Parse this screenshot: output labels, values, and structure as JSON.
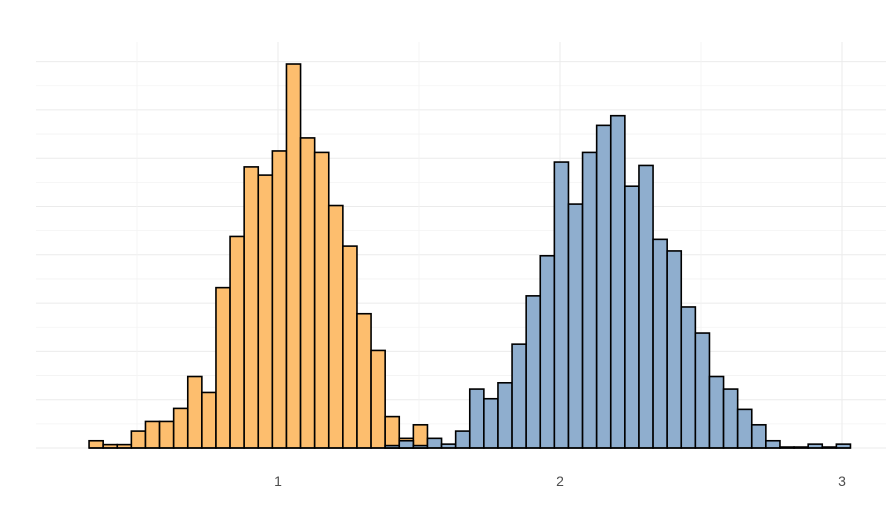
{
  "chart_data": {
    "type": "bar",
    "title": "",
    "xlabel": "",
    "ylabel": "",
    "grid": true,
    "legend": "none",
    "xlim": [
      0.0,
      3.1
    ],
    "ylim": [
      0,
      80
    ],
    "x_ticks": [
      1,
      2,
      3
    ],
    "x_tick_labels": [
      "1",
      "2",
      "3"
    ],
    "bin_width": 0.05,
    "series": [
      {
        "color": "#FDBE6E",
        "bin_starts": [
          0.33,
          0.38,
          0.43,
          0.48,
          0.53,
          0.58,
          0.63,
          0.68,
          0.73,
          0.78,
          0.83,
          0.88,
          0.93,
          0.98,
          1.03,
          1.08,
          1.13,
          1.18,
          1.23,
          1.28,
          1.33,
          1.38,
          1.43,
          1.48
        ],
        "counts": [
          1.5,
          0.7,
          0.7,
          3.5,
          5.5,
          5.5,
          8.2,
          14.8,
          11.5,
          33.2,
          43.8,
          58.2,
          56.5,
          61.5,
          79.5,
          64.2,
          61.2,
          50.2,
          41.8,
          27.8,
          20.2,
          6.5,
          2.0,
          4.8
        ]
      },
      {
        "color": "#8FAECE",
        "bin_starts": [
          1.38,
          1.43,
          1.48,
          1.53,
          1.58,
          1.63,
          1.68,
          1.73,
          1.78,
          1.83,
          1.88,
          1.93,
          1.98,
          2.03,
          2.08,
          2.13,
          2.18,
          2.23,
          2.28,
          2.33,
          2.38,
          2.43,
          2.48,
          2.53,
          2.58,
          2.63,
          2.68,
          2.73,
          2.78,
          2.83,
          2.88,
          2.93,
          2.98
        ],
        "counts": [
          0.5,
          1.5,
          0.5,
          2.0,
          0.8,
          3.5,
          12.2,
          10.2,
          13.5,
          21.5,
          31.5,
          39.8,
          59.2,
          50.5,
          61.2,
          66.8,
          68.8,
          54.2,
          58.5,
          43.2,
          40.8,
          29.2,
          23.8,
          14.8,
          12.2,
          8.0,
          4.8,
          1.5,
          0.2,
          0.2,
          0.8,
          0.2,
          0.8
        ]
      }
    ]
  }
}
